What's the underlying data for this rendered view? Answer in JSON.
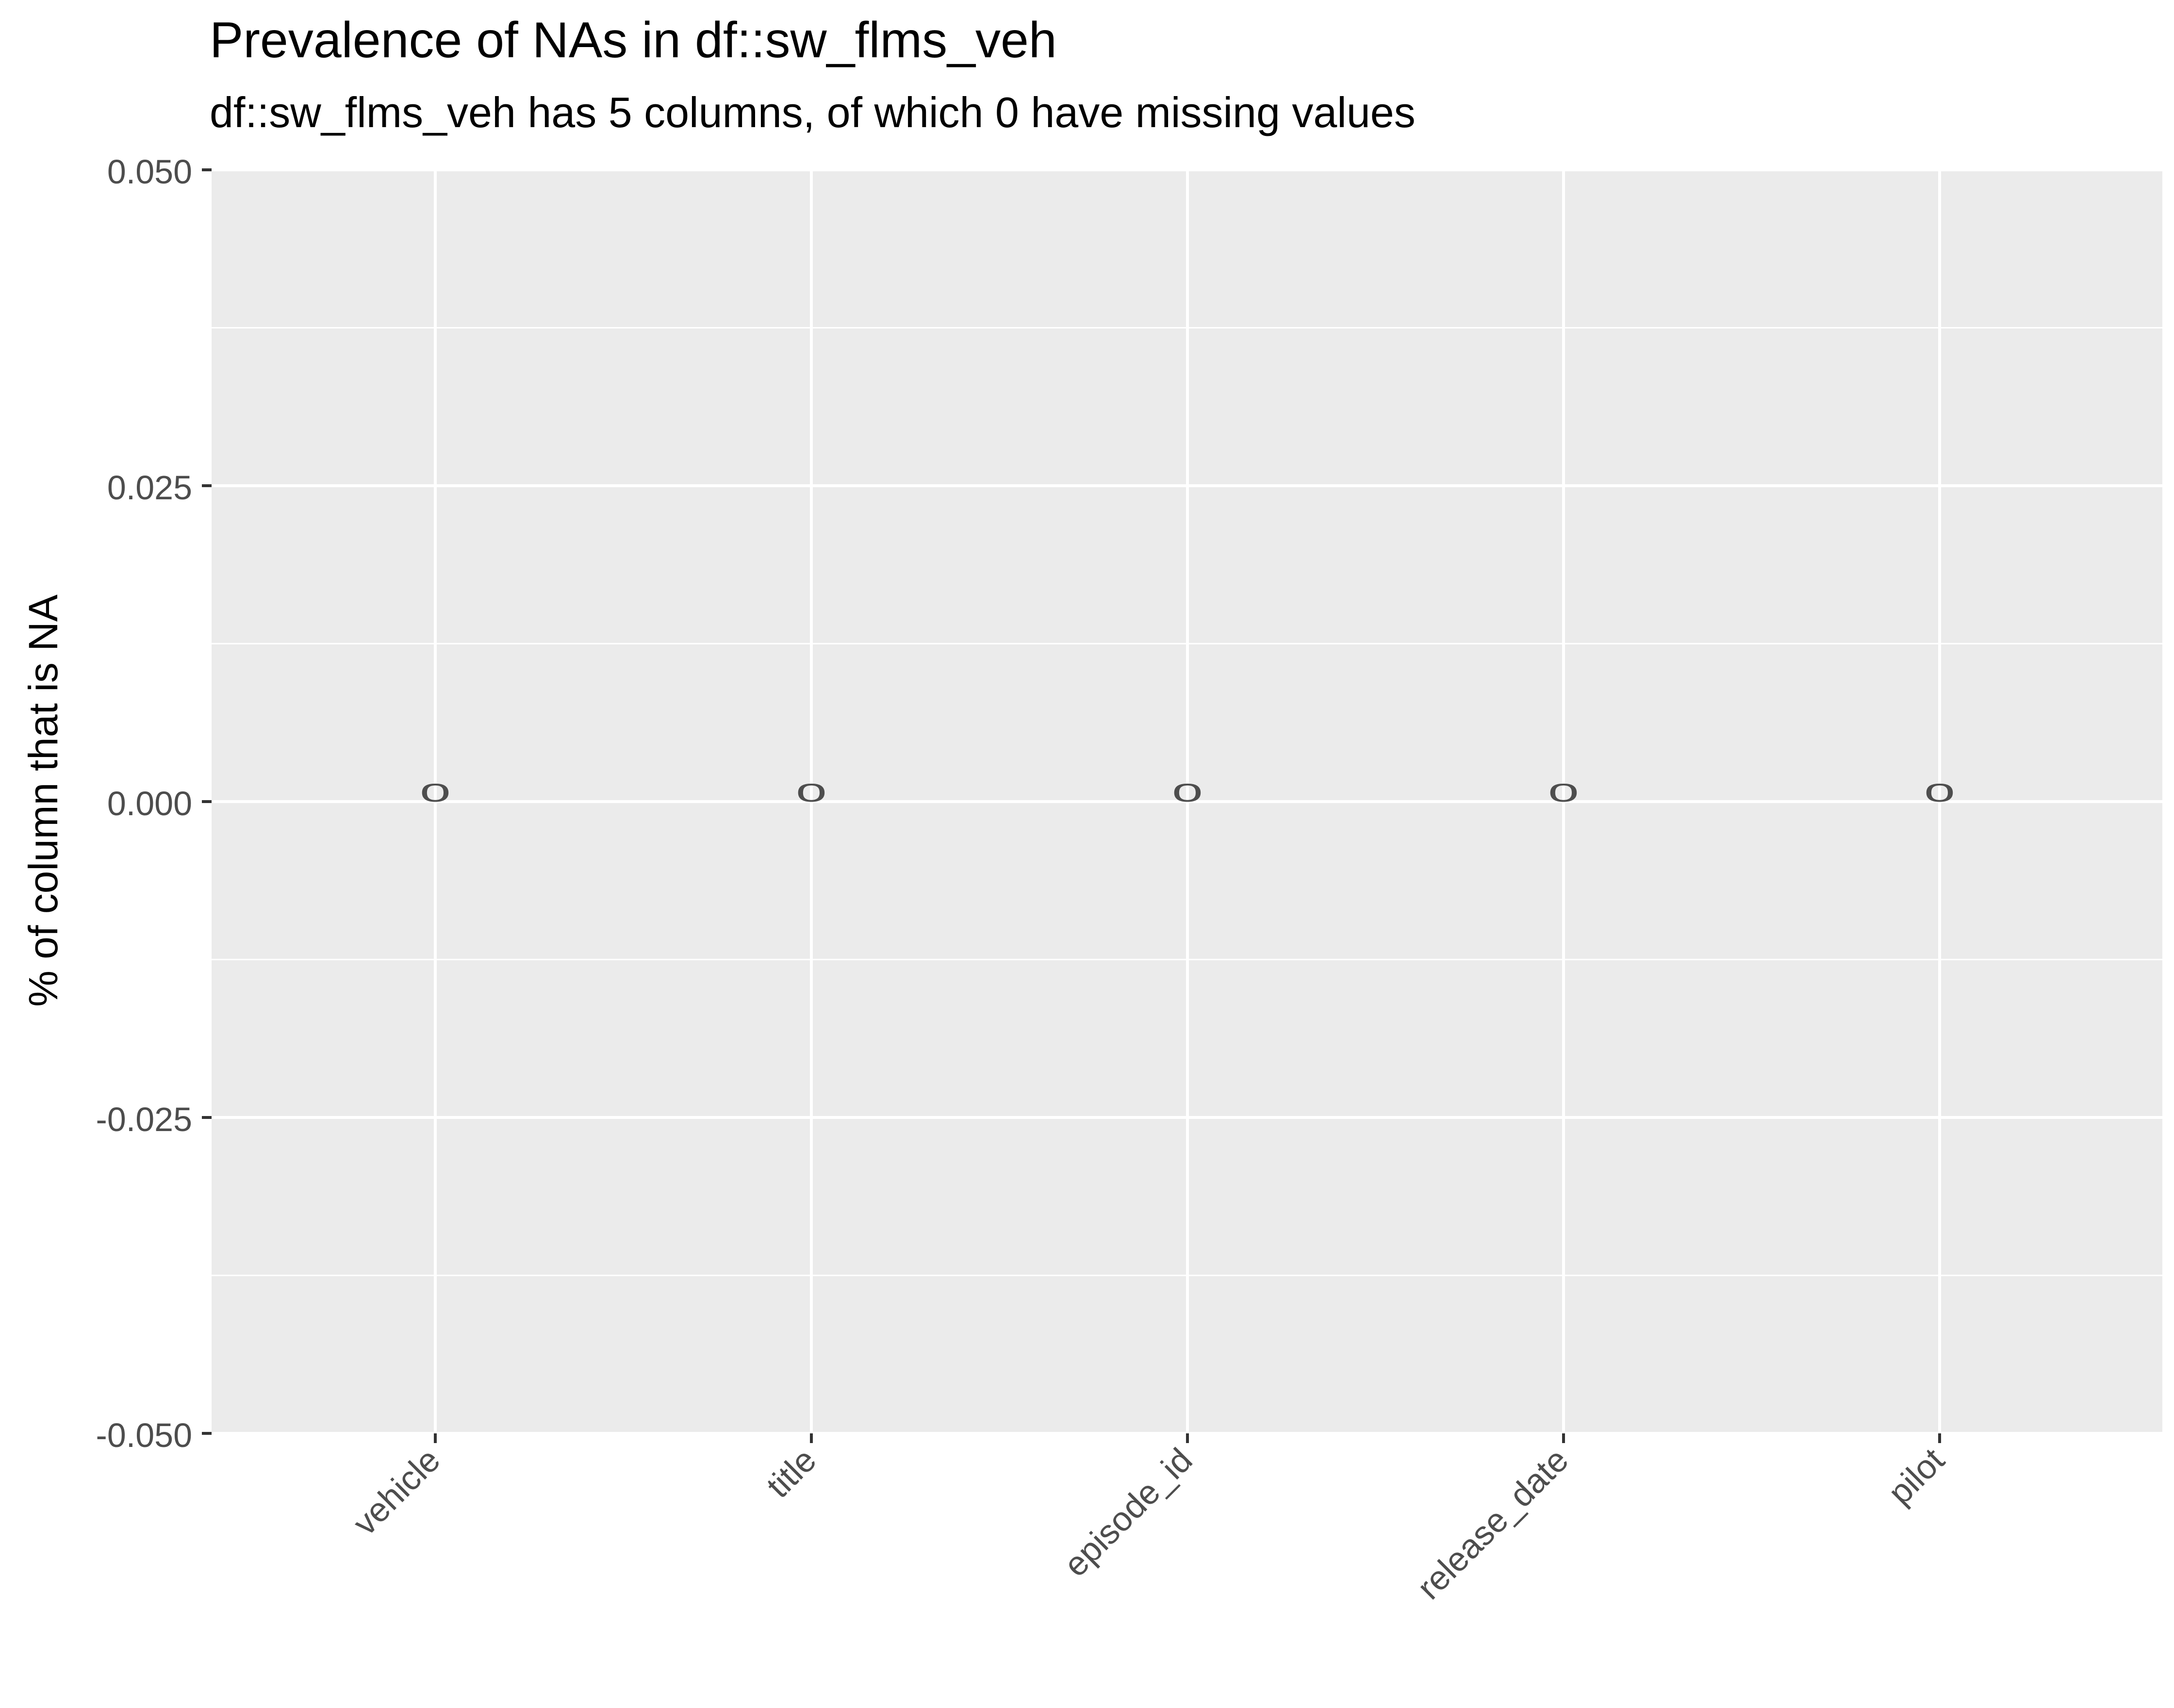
{
  "chart_data": {
    "type": "scatter",
    "title": "Prevalence of NAs in df::sw_flms_veh",
    "subtitle": "df::sw_flms_veh has 5 columns, of which 0 have missing values",
    "xlabel": "",
    "ylabel": "% of column that is NA",
    "categories": [
      "vehicle",
      "title",
      "episode_id",
      "release_date",
      "pilot"
    ],
    "values": [
      0,
      0,
      0,
      0,
      0
    ],
    "labels": [
      "0",
      "0",
      "0",
      "0",
      "0"
    ],
    "ylim": [
      -0.05,
      0.05
    ],
    "y_ticks": [
      -0.05,
      -0.025,
      0,
      0.025,
      0.05
    ],
    "y_tick_labels": [
      "-0.050",
      "-0.025",
      "0.000",
      "0.025",
      "0.050"
    ],
    "grid": true,
    "legend": "none",
    "colors": {
      "panel_background": "#ebebeb",
      "grid_line": "#ffffff",
      "tick_text": "#4d4d4d",
      "label_text": "#4d4d4d"
    }
  }
}
